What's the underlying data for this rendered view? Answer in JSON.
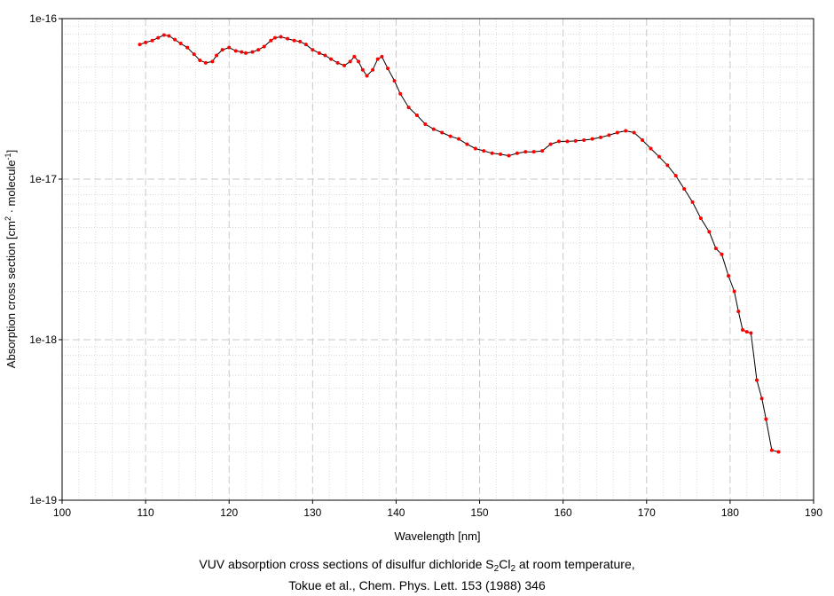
{
  "chart_data": {
    "type": "line",
    "xlabel": "Wavelength [nm]",
    "ylabel_parts": [
      "Absorption cross section [cm",
      "2",
      " · molecule",
      "-1",
      "]"
    ],
    "xlim": [
      100,
      190
    ],
    "ylim": [
      1e-19,
      1e-16
    ],
    "yscale": "log",
    "x_ticks": [
      "100",
      "110",
      "120",
      "130",
      "140",
      "150",
      "160",
      "170",
      "180",
      "190"
    ],
    "y_ticks": [
      "1e-19",
      "1e-18",
      "1e-17",
      "1e-16"
    ],
    "grid": true,
    "colors": {
      "line": "#000000",
      "points": "#ff0000",
      "major_grid": "#c8c8c8",
      "minor_grid": "#dadada"
    },
    "series": [
      {
        "x": [
          109.3,
          110.0,
          110.8,
          111.5,
          112.2,
          112.8,
          113.5,
          114.2,
          115.0,
          115.8,
          116.5,
          117.2,
          118.0,
          118.5,
          119.2,
          120.0,
          120.8,
          121.5,
          122.0,
          122.8,
          123.5,
          124.2,
          125.0,
          125.5,
          126.2,
          127.0,
          127.8,
          128.5,
          129.2,
          130.0,
          130.8,
          131.5,
          132.2,
          133.0,
          133.8,
          134.5,
          135.0,
          135.5,
          136.0,
          136.5,
          137.2,
          137.8,
          138.3,
          139.0,
          139.8,
          140.5,
          141.5,
          142.5,
          143.5,
          144.5,
          145.5,
          146.5,
          147.5,
          148.5,
          149.5,
          150.5,
          151.5,
          152.5,
          153.5,
          154.5,
          155.5,
          156.5,
          157.5,
          158.5,
          159.5,
          160.5,
          161.5,
          162.5,
          163.5,
          164.5,
          165.5,
          166.5,
          167.5,
          168.5,
          169.5,
          170.5,
          171.5,
          172.5,
          173.5,
          174.5,
          175.5,
          176.5,
          177.5,
          178.3,
          179.0,
          179.8,
          180.5,
          181.0,
          181.5,
          182.0,
          182.5,
          183.2,
          183.8,
          184.3,
          185.0,
          185.8
        ],
        "y": [
          6.9e-17,
          7.1e-17,
          7.3e-17,
          7.6e-17,
          7.9e-17,
          7.8e-17,
          7.4e-17,
          7e-17,
          6.6e-17,
          6e-17,
          5.5e-17,
          5.3e-17,
          5.4e-17,
          5.9e-17,
          6.4e-17,
          6.6e-17,
          6.3e-17,
          6.2e-17,
          6.1e-17,
          6.2e-17,
          6.4e-17,
          6.7e-17,
          7.3e-17,
          7.6e-17,
          7.7e-17,
          7.5e-17,
          7.3e-17,
          7.2e-17,
          6.9e-17,
          6.4e-17,
          6.1e-17,
          5.9e-17,
          5.6e-17,
          5.3e-17,
          5.1e-17,
          5.4e-17,
          5.8e-17,
          5.4e-17,
          4.8e-17,
          4.4e-17,
          4.8e-17,
          5.6e-17,
          5.8e-17,
          4.9e-17,
          4.1e-17,
          3.4e-17,
          2.8e-17,
          2.5e-17,
          2.2e-17,
          2.05e-17,
          1.95e-17,
          1.85e-17,
          1.78e-17,
          1.65e-17,
          1.55e-17,
          1.5e-17,
          1.45e-17,
          1.43e-17,
          1.4e-17,
          1.45e-17,
          1.48e-17,
          1.48e-17,
          1.5e-17,
          1.65e-17,
          1.72e-17,
          1.72e-17,
          1.73e-17,
          1.75e-17,
          1.78e-17,
          1.82e-17,
          1.88e-17,
          1.95e-17,
          2e-17,
          1.95e-17,
          1.75e-17,
          1.55e-17,
          1.38e-17,
          1.22e-17,
          1.05e-17,
          8.7e-18,
          7.2e-18,
          5.7e-18,
          4.7e-18,
          3.7e-18,
          3.4e-18,
          2.5e-18,
          2e-18,
          1.5e-18,
          1.15e-18,
          1.12e-18,
          1.1e-18,
          5.6e-19,
          4.3e-19,
          3.2e-19,
          2.05e-19,
          2e-19
        ]
      }
    ]
  },
  "caption": {
    "line1_before": "VUV absorption cross sections of disulfur dichloride S",
    "line1_sub1": "2",
    "line1_mid": "Cl",
    "line1_sub2": "2",
    "line1_after": " at room temperature,",
    "line2": "Tokue et al., Chem. Phys. Lett. 153 (1988) 346"
  }
}
